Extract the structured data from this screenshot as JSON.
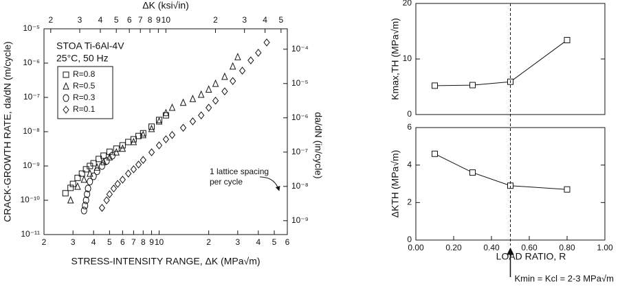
{
  "chart_data": [
    {
      "type": "scatter",
      "xlabel": "STRESS-INTENSITY RANGE, ΔK (MPa√m)",
      "x2label": "ΔK (ksi√in)",
      "ylabel": "CRACK-GROWTH RATE, da/dN (m/cycle)",
      "y2label": "da/dN (in/cycle)",
      "annotations": [
        "STOA Ti-6Al-4V",
        "25°C, 50 Hz"
      ],
      "note": [
        "1 lattice spacing",
        "per cycle"
      ],
      "xlog": true,
      "ylog": true,
      "xlim": [
        2,
        60
      ],
      "xticks": [
        2,
        3,
        4,
        5,
        6,
        7,
        8,
        9,
        10,
        {
          "value": 20,
          "label": "2"
        },
        {
          "value": 30,
          "label": "3"
        },
        {
          "value": 40,
          "label": "4"
        },
        {
          "value": 50,
          "label": "5"
        },
        {
          "value": 60,
          "label": "6"
        }
      ],
      "x2lim": [
        1.82,
        54.6
      ],
      "x2ticks": [
        2,
        3,
        4,
        5,
        6,
        7,
        8,
        9,
        10,
        {
          "value": 20,
          "label": "2"
        },
        {
          "value": 30,
          "label": "3"
        },
        {
          "value": 40,
          "label": "4"
        },
        {
          "value": 50,
          "label": "5"
        }
      ],
      "ylim": [
        1e-11,
        1e-05
      ],
      "yticks": [
        {
          "value": 1e-11,
          "label": "10⁻¹¹"
        },
        {
          "value": 1e-10,
          "label": "10⁻¹⁰"
        },
        {
          "value": 1e-09,
          "label": "10⁻⁹"
        },
        {
          "value": 1e-08,
          "label": "10⁻⁸"
        },
        {
          "value": 1e-07,
          "label": "10⁻⁷"
        },
        {
          "value": 1e-06,
          "label": "10⁻⁶"
        },
        {
          "value": 1e-05,
          "label": "10⁻⁵"
        }
      ],
      "y2lim": [
        3.94e-10,
        0.000394
      ],
      "y2ticks": [
        {
          "value": 1e-09,
          "label": "10⁻⁹"
        },
        {
          "value": 1e-08,
          "label": "10⁻⁸"
        },
        {
          "value": 1e-07,
          "label": "10⁻⁷"
        },
        {
          "value": 1e-06,
          "label": "10⁻⁶"
        },
        {
          "value": 1e-05,
          "label": "10⁻⁵"
        },
        {
          "value": 0.0001,
          "label": "10⁻⁴"
        }
      ],
      "series": [
        {
          "name": "R=0.8",
          "marker": "square",
          "color": "#111111",
          "x": [
            2.7,
            2.9,
            3.0,
            3.2,
            3.4,
            3.6,
            3.8,
            4.0,
            4.3,
            4.6,
            5.0,
            5.5,
            6.0,
            6.5,
            7.0,
            7.5,
            8.0,
            9.0,
            10,
            11
          ],
          "values": [
            1.6e-10,
            2.3e-10,
            3e-10,
            4.5e-10,
            6e-10,
            8e-10,
            1e-09,
            1.2e-09,
            1.6e-09,
            2e-09,
            2.6e-09,
            3.2e-09,
            4e-09,
            5e-09,
            6e-09,
            7.5e-09,
            9e-09,
            1.4e-08,
            2.2e-08,
            3e-08
          ]
        },
        {
          "name": "R=0.5",
          "marker": "triangle",
          "color": "#111111",
          "x": [
            2.9,
            3.2,
            3.5,
            3.8,
            4.2,
            4.6,
            5.0,
            5.5,
            6,
            7,
            8,
            9,
            10,
            11,
            12,
            14,
            16,
            18,
            20,
            22,
            25,
            28,
            30
          ],
          "values": [
            1e-10,
            2.5e-10,
            4e-10,
            6e-10,
            9e-10,
            1.3e-09,
            1.8e-09,
            2.5e-09,
            3.2e-09,
            5e-09,
            8e-09,
            1.2e-08,
            2e-08,
            3.5e-08,
            5e-08,
            7e-08,
            9e-08,
            1.2e-07,
            1.7e-07,
            2.5e-07,
            4e-07,
            8e-07,
            1.5e-06
          ]
        },
        {
          "name": "R=0.3",
          "marker": "circle",
          "color": "#111111",
          "x": [
            3.5,
            3.55,
            3.6,
            3.65,
            3.7,
            3.8,
            4.0,
            4.2,
            4.5,
            4.8,
            5.2
          ],
          "values": [
            5e-11,
            7e-11,
            1e-10,
            1.5e-10,
            2.2e-10,
            3.5e-10,
            5e-10,
            7e-10,
            1e-09,
            1.4e-09,
            2e-09
          ]
        },
        {
          "name": "R=0.1",
          "marker": "diamond",
          "color": "#111111",
          "x": [
            4.5,
            4.8,
            5.0,
            5.3,
            5.6,
            6,
            6.5,
            7,
            7.5,
            8,
            9,
            10,
            11,
            12,
            14,
            16,
            18,
            20,
            22,
            25,
            28,
            32,
            36,
            40,
            45
          ],
          "values": [
            6e-11,
            1e-10,
            1.5e-10,
            2.2e-10,
            3e-10,
            4e-10,
            6e-10,
            8e-10,
            1.1e-09,
            1.5e-09,
            2.5e-09,
            4e-09,
            6e-09,
            8e-09,
            1.3e-08,
            2e-08,
            3e-08,
            5e-08,
            8e-08,
            1.5e-07,
            3e-07,
            6e-07,
            1.2e-06,
            2e-06,
            4e-06
          ]
        }
      ]
    },
    {
      "type": "line",
      "ylabel": "Kmax,TH (MPa√m)",
      "x": [
        0.1,
        0.3,
        0.5,
        0.8
      ],
      "xlim": [
        0,
        1
      ],
      "ylim": [
        0,
        20
      ],
      "yticks": [
        0,
        10,
        20
      ],
      "series": [
        {
          "marker": "square",
          "color": "#111111",
          "values": [
            5.2,
            5.3,
            5.9,
            13.4
          ]
        }
      ]
    },
    {
      "type": "line",
      "xlabel": "LOAD RATIO, R",
      "ylabel": "ΔKTH (MPa√m)",
      "note": [
        "Kmin = Kcl = 2-3 MPa√m"
      ],
      "vline": 0.5,
      "x": [
        0.1,
        0.3,
        0.5,
        0.8
      ],
      "xlim": [
        0,
        1
      ],
      "xticks": [
        {
          "value": 0,
          "label": "0.00"
        },
        {
          "value": 0.2,
          "label": "0.20"
        },
        {
          "value": 0.4,
          "label": "0.40"
        },
        {
          "value": 0.6,
          "label": "0.60"
        },
        {
          "value": 0.8,
          "label": "0.80"
        },
        {
          "value": 1,
          "label": "1.00"
        }
      ],
      "ylim": [
        0,
        6
      ],
      "yticks": [
        0,
        2,
        4,
        6
      ],
      "series": [
        {
          "marker": "square",
          "color": "#111111",
          "values": [
            4.6,
            3.6,
            2.9,
            2.7
          ]
        }
      ]
    }
  ]
}
